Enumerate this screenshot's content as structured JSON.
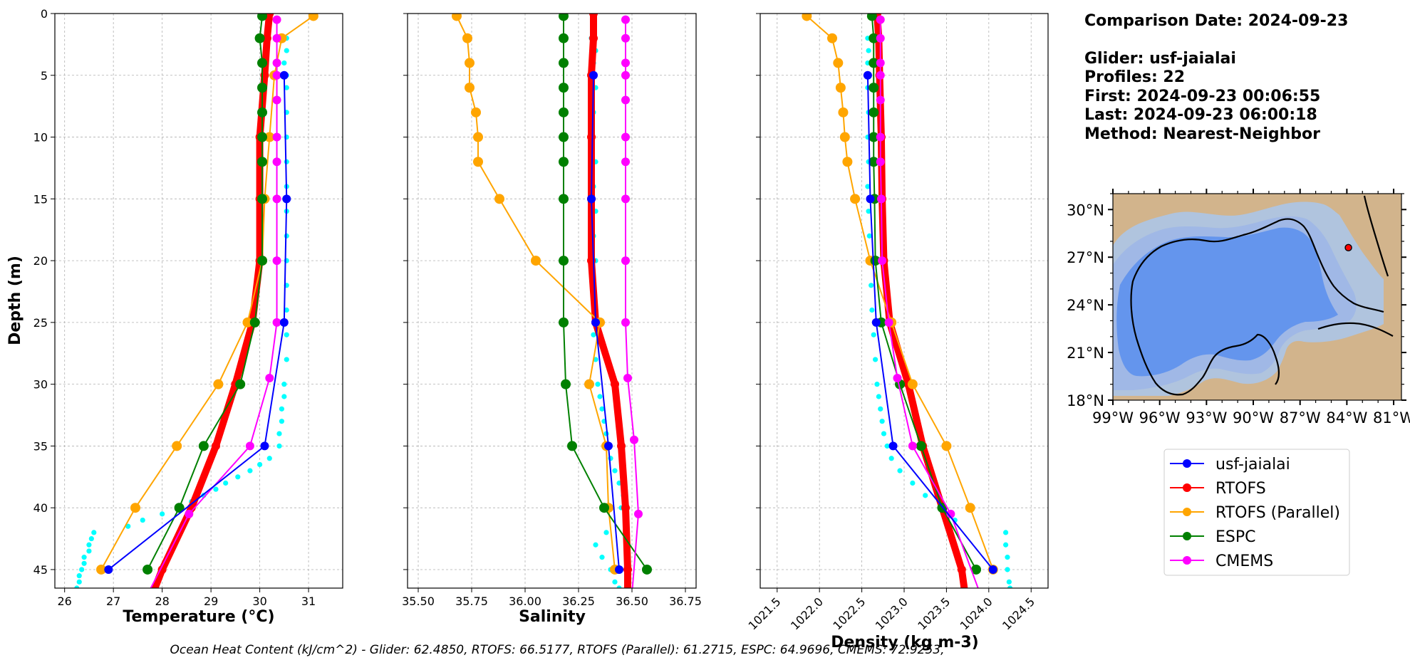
{
  "info": {
    "date": "Comparison Date: 2024-09-23",
    "glider": "Glider: usf-jaialai",
    "profiles": "Profiles: 22",
    "first": "First: 2024-09-23 00:06:55",
    "last": "Last: 2024-09-23 06:00:18",
    "method": "Method: Nearest-Neighbor"
  },
  "footer": "Ocean Heat Content (kJ/cm^2) - Glider: 62.4850,  RTOFS: 66.5177,  RTOFS (Parallel): 61.2715,  ESPC: 64.9696,  CMEMS: 72.9253,",
  "colors": {
    "glider": "#0000ff",
    "rtofs": "#ff0000",
    "rtofs_parallel": "#ffa500",
    "espc": "#008000",
    "cmems": "#ff00ff",
    "glider_scatter": "#00ffff",
    "map_land": "#d2b48c",
    "map_shelf": "#b0c4de",
    "map_mid": "#a0b8e6",
    "map_deep": "#6495ed"
  },
  "legend": [
    {
      "label": "usf-jaialai",
      "color_key": "glider"
    },
    {
      "label": "RTOFS",
      "color_key": "rtofs"
    },
    {
      "label": "RTOFS (Parallel)",
      "color_key": "rtofs_parallel"
    },
    {
      "label": "ESPC",
      "color_key": "espc"
    },
    {
      "label": "CMEMS",
      "color_key": "cmems"
    }
  ],
  "map": {
    "lat_ticks": [
      "30°N",
      "27°N",
      "24°N",
      "21°N",
      "18°N"
    ],
    "lon_ticks": [
      "99°W",
      "96°W",
      "93°W",
      "90°W",
      "87°W",
      "84°W",
      "81°W"
    ],
    "xlim": [
      -99,
      -80.5
    ],
    "ylim": [
      18,
      31
    ],
    "lat_values": [
      30,
      27,
      24,
      21,
      18
    ],
    "lon_values": [
      -99,
      -96,
      -93,
      -90,
      -87,
      -84,
      -81
    ],
    "glider_position": {
      "lon": -83.9,
      "lat": 27.6
    },
    "grid": false
  },
  "chart_data": [
    {
      "type": "line",
      "xlabel": "Temperature ($^oC$)",
      "xlabel_display": "Temperature (°C)",
      "ylabel": "Depth (m)",
      "xlim": [
        25.8,
        31.7
      ],
      "ylim": [
        46.5,
        0
      ],
      "xticks": [
        26,
        27,
        28,
        29,
        30,
        31
      ],
      "yticks": [
        0,
        5,
        10,
        15,
        20,
        25,
        30,
        35,
        40,
        45
      ],
      "grid": true,
      "series": [
        {
          "name": "usf-jaialai",
          "color_key": "glider",
          "width": 2,
          "marker": 6,
          "depth": [
            5,
            15,
            25,
            35,
            45
          ],
          "values": [
            30.5,
            30.55,
            30.5,
            30.1,
            26.9
          ]
        },
        {
          "name": "RTOFS",
          "color_key": "rtofs",
          "width": 10,
          "marker": 6,
          "depth": [
            0,
            2,
            5,
            10,
            15,
            20,
            25,
            30,
            35,
            40,
            45
          ],
          "values": [
            30.2,
            30.15,
            30.1,
            30.0,
            30.0,
            30.0,
            29.85,
            29.5,
            29.1,
            28.6,
            28.0
          ],
          "tail": {
            "depth": 47,
            "value": 27.8
          }
        },
        {
          "name": "RTOFS (Parallel)",
          "color_key": "rtofs_parallel",
          "width": 2,
          "marker": 7,
          "depth": [
            0.2,
            2,
            5,
            10,
            15,
            20,
            25,
            30,
            35,
            40,
            45
          ],
          "values": [
            31.1,
            30.45,
            30.3,
            30.2,
            30.1,
            30.05,
            29.75,
            29.15,
            28.3,
            27.45,
            26.75
          ]
        },
        {
          "name": "ESPC",
          "color_key": "espc",
          "width": 2,
          "marker": 7,
          "depth": [
            0.2,
            2,
            4,
            6,
            8,
            10,
            12,
            15,
            20,
            25,
            30,
            35,
            40,
            45
          ],
          "values": [
            30.05,
            30.0,
            30.05,
            30.05,
            30.05,
            30.05,
            30.05,
            30.05,
            30.05,
            29.9,
            29.6,
            28.85,
            28.35,
            27.7
          ]
        },
        {
          "name": "CMEMS",
          "color_key": "cmems",
          "width": 2,
          "marker": 6,
          "depth": [
            0.5,
            2,
            4,
            5,
            7,
            10,
            12,
            15,
            20,
            25,
            29.5,
            35,
            40.5
          ],
          "values": [
            30.35,
            30.35,
            30.35,
            30.35,
            30.35,
            30.35,
            30.35,
            30.35,
            30.35,
            30.35,
            30.2,
            29.8,
            28.55
          ],
          "tail": {
            "depth": 47,
            "value": 27.7
          }
        }
      ],
      "scatter": {
        "name": "usf-jaialai profiles",
        "color_key": "glider_scatter",
        "depth": [
          2,
          3,
          4,
          5,
          6,
          8,
          10,
          12,
          14,
          16,
          18,
          20,
          22,
          24,
          26,
          28,
          30,
          31,
          32,
          33,
          34,
          35,
          36,
          36.5,
          37,
          37.5,
          38,
          38.5,
          39,
          39.5,
          40,
          40.5,
          41,
          41.5,
          42,
          42.5,
          43,
          43.5,
          44,
          44.5,
          45,
          45.5,
          46,
          46.5
        ],
        "values": [
          30.55,
          30.55,
          30.5,
          30.55,
          30.55,
          30.55,
          30.55,
          30.55,
          30.55,
          30.55,
          30.55,
          30.55,
          30.55,
          30.55,
          30.55,
          30.55,
          30.5,
          30.5,
          30.45,
          30.45,
          30.4,
          30.4,
          30.2,
          30.0,
          29.8,
          29.55,
          29.3,
          29.1,
          28.85,
          28.6,
          28.4,
          28.0,
          27.6,
          27.3,
          26.6,
          26.55,
          26.5,
          26.5,
          26.4,
          26.4,
          26.35,
          26.3,
          26.3,
          26.25
        ]
      }
    },
    {
      "type": "line",
      "xlabel": "Salinity",
      "xlim": [
        35.45,
        36.8
      ],
      "ylim": [
        46.5,
        0
      ],
      "xticks": [
        35.5,
        35.75,
        36.0,
        36.25,
        36.5,
        36.75
      ],
      "xtick_labels": [
        "35.50",
        "35.75",
        "36.00",
        "36.25",
        "36.50",
        "36.75"
      ],
      "grid": true,
      "series": [
        {
          "name": "usf-jaialai",
          "color_key": "glider",
          "width": 2,
          "marker": 6,
          "depth": [
            5,
            15,
            25,
            35,
            45
          ],
          "values": [
            36.32,
            36.31,
            36.33,
            36.39,
            36.44
          ]
        },
        {
          "name": "RTOFS",
          "color_key": "rtofs",
          "width": 10,
          "marker": 6,
          "depth": [
            0,
            2,
            5,
            10,
            15,
            20,
            25,
            30,
            35,
            40,
            45
          ],
          "values": [
            36.32,
            36.32,
            36.31,
            36.31,
            36.31,
            36.31,
            36.33,
            36.42,
            36.45,
            36.47,
            36.48
          ],
          "tail": {
            "depth": 47,
            "value": 36.48
          }
        },
        {
          "name": "RTOFS (Parallel)",
          "color_key": "rtofs_parallel",
          "width": 2,
          "marker": 7,
          "depth": [
            0.2,
            2,
            4,
            6,
            8,
            10,
            12,
            15,
            20,
            25,
            30,
            35,
            40,
            45
          ],
          "values": [
            35.68,
            35.73,
            35.74,
            35.74,
            35.77,
            35.78,
            35.78,
            35.88,
            36.05,
            36.35,
            36.3,
            36.38,
            36.39,
            36.42
          ]
        },
        {
          "name": "ESPC",
          "color_key": "espc",
          "width": 2,
          "marker": 7,
          "depth": [
            0.2,
            2,
            4,
            6,
            8,
            10,
            12,
            15,
            20,
            25,
            30,
            35,
            40,
            45
          ],
          "values": [
            36.18,
            36.18,
            36.18,
            36.18,
            36.18,
            36.18,
            36.18,
            36.18,
            36.18,
            36.18,
            36.19,
            36.22,
            36.37,
            36.57
          ]
        },
        {
          "name": "CMEMS",
          "color_key": "cmems",
          "width": 2,
          "marker": 6,
          "depth": [
            0.5,
            2,
            4,
            5,
            7,
            10,
            12,
            15,
            20,
            25,
            29.5,
            34.5,
            40.5
          ],
          "values": [
            36.47,
            36.47,
            36.47,
            36.47,
            36.47,
            36.47,
            36.47,
            36.47,
            36.47,
            36.47,
            36.48,
            36.51,
            36.53
          ],
          "tail": {
            "depth": 47,
            "value": 36.5
          }
        }
      ],
      "scatter": {
        "name": "usf-jaialai profiles",
        "color_key": "glider_scatter",
        "depth": [
          2,
          3,
          4,
          5,
          6,
          8,
          10,
          12,
          14,
          16,
          18,
          20,
          22,
          24,
          26,
          28,
          30,
          31,
          32,
          33,
          34,
          35,
          36,
          37,
          38,
          39,
          40,
          41,
          42,
          43,
          44,
          45,
          46,
          46.5
        ],
        "values": [
          36.31,
          36.33,
          36.32,
          36.31,
          36.33,
          36.32,
          36.31,
          36.33,
          36.32,
          36.33,
          36.32,
          36.33,
          36.32,
          36.33,
          36.32,
          36.33,
          36.34,
          36.35,
          36.36,
          36.37,
          36.38,
          36.38,
          36.4,
          36.42,
          36.44,
          36.46,
          36.45,
          36.47,
          36.38,
          36.33,
          36.36,
          36.4,
          36.42,
          36.44
        ]
      }
    },
    {
      "type": "line",
      "xlabel": "Density (kg m-3)",
      "xlim": [
        1021.3,
        1024.7
      ],
      "ylim": [
        46.5,
        0
      ],
      "xticks": [
        1021.5,
        1022.0,
        1022.5,
        1023.0,
        1023.5,
        1024.0,
        1024.5
      ],
      "xtick_labels": [
        "1021.5",
        "1022.0",
        "1022.5",
        "1023.0",
        "1023.5",
        "1024.0",
        "1024.5"
      ],
      "grid": true,
      "series": [
        {
          "name": "usf-jaialai",
          "color_key": "glider",
          "width": 2,
          "marker": 6,
          "depth": [
            5,
            15,
            25,
            35,
            45
          ],
          "values": [
            1022.57,
            1022.6,
            1022.67,
            1022.87,
            1024.05
          ]
        },
        {
          "name": "RTOFS",
          "color_key": "rtofs",
          "width": 10,
          "marker": 6,
          "depth": [
            0,
            2,
            5,
            10,
            15,
            20,
            25,
            30,
            35,
            40,
            45
          ],
          "values": [
            1022.68,
            1022.7,
            1022.71,
            1022.73,
            1022.74,
            1022.76,
            1022.83,
            1023.05,
            1023.22,
            1023.45,
            1023.68
          ],
          "tail": {
            "depth": 47,
            "value": 1023.72
          }
        },
        {
          "name": "RTOFS (Parallel)",
          "color_key": "rtofs_parallel",
          "width": 2,
          "marker": 7,
          "depth": [
            0.2,
            2,
            4,
            6,
            8,
            10,
            12,
            15,
            20,
            25,
            30,
            35,
            40,
            45
          ],
          "values": [
            1021.85,
            1022.15,
            1022.22,
            1022.25,
            1022.28,
            1022.3,
            1022.33,
            1022.42,
            1022.6,
            1022.85,
            1023.1,
            1023.5,
            1023.78,
            1024.05
          ]
        },
        {
          "name": "ESPC",
          "color_key": "espc",
          "width": 2,
          "marker": 7,
          "depth": [
            0.2,
            2,
            4,
            6,
            8,
            10,
            12,
            15,
            20,
            25,
            30,
            35,
            40,
            45
          ],
          "values": [
            1022.62,
            1022.64,
            1022.64,
            1022.64,
            1022.64,
            1022.64,
            1022.64,
            1022.65,
            1022.66,
            1022.73,
            1022.95,
            1023.2,
            1023.45,
            1023.85
          ]
        },
        {
          "name": "CMEMS",
          "color_key": "cmems",
          "width": 2,
          "marker": 6,
          "depth": [
            0.5,
            2,
            4,
            5,
            7,
            10,
            12,
            15,
            20,
            25,
            29.5,
            35,
            40.5
          ],
          "values": [
            1022.72,
            1022.72,
            1022.72,
            1022.72,
            1022.72,
            1022.72,
            1022.72,
            1022.73,
            1022.74,
            1022.82,
            1022.92,
            1023.1,
            1023.55
          ],
          "tail": {
            "depth": 47,
            "value": 1023.9
          }
        }
      ],
      "scatter": {
        "name": "usf-jaialai profiles",
        "color_key": "glider_scatter",
        "depth": [
          2,
          3,
          4,
          5,
          6,
          8,
          10,
          12,
          14,
          16,
          18,
          20,
          22,
          24,
          26,
          28,
          30,
          31,
          32,
          33,
          34,
          35,
          36,
          37,
          38,
          39,
          40,
          41,
          42,
          43,
          44,
          45,
          46,
          46.5
        ],
        "values": [
          1022.57,
          1022.58,
          1022.57,
          1022.58,
          1022.57,
          1022.58,
          1022.57,
          1022.58,
          1022.57,
          1022.58,
          1022.59,
          1022.6,
          1022.61,
          1022.62,
          1022.64,
          1022.66,
          1022.68,
          1022.7,
          1022.72,
          1022.74,
          1022.76,
          1022.8,
          1022.85,
          1022.95,
          1023.1,
          1023.25,
          1023.45,
          1023.6,
          1024.2,
          1024.2,
          1024.22,
          1024.22,
          1024.24,
          1024.25
        ]
      }
    }
  ]
}
